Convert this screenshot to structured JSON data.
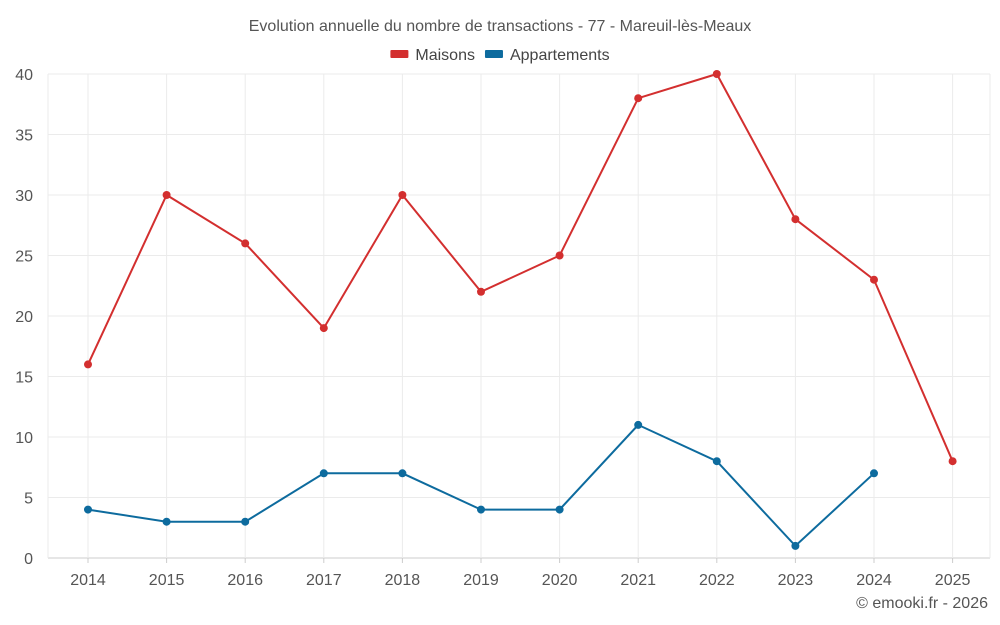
{
  "chart_data": {
    "type": "line",
    "title": "Evolution annuelle du nombre de transactions - 77 - Mareuil-lès-Meaux",
    "categories": [
      "2014",
      "2015",
      "2016",
      "2017",
      "2018",
      "2019",
      "2020",
      "2021",
      "2022",
      "2023",
      "2024",
      "2025"
    ],
    "series": [
      {
        "name": "Maisons",
        "color": "#d32f2f",
        "values": [
          16,
          30,
          26,
          19,
          30,
          22,
          25,
          38,
          40,
          28,
          23,
          8
        ]
      },
      {
        "name": "Appartements",
        "color": "#0d6b9e",
        "values": [
          4,
          3,
          3,
          7,
          7,
          4,
          4,
          11,
          8,
          1,
          7,
          null
        ]
      }
    ],
    "ylim": [
      0,
      40
    ],
    "yticks": [
      0,
      5,
      10,
      15,
      20,
      25,
      30,
      35,
      40
    ],
    "xlabel": "",
    "ylabel": "",
    "grid": true,
    "legend_position": "top-center"
  },
  "footer": {
    "credit": "© emooki.fr - 2026"
  }
}
